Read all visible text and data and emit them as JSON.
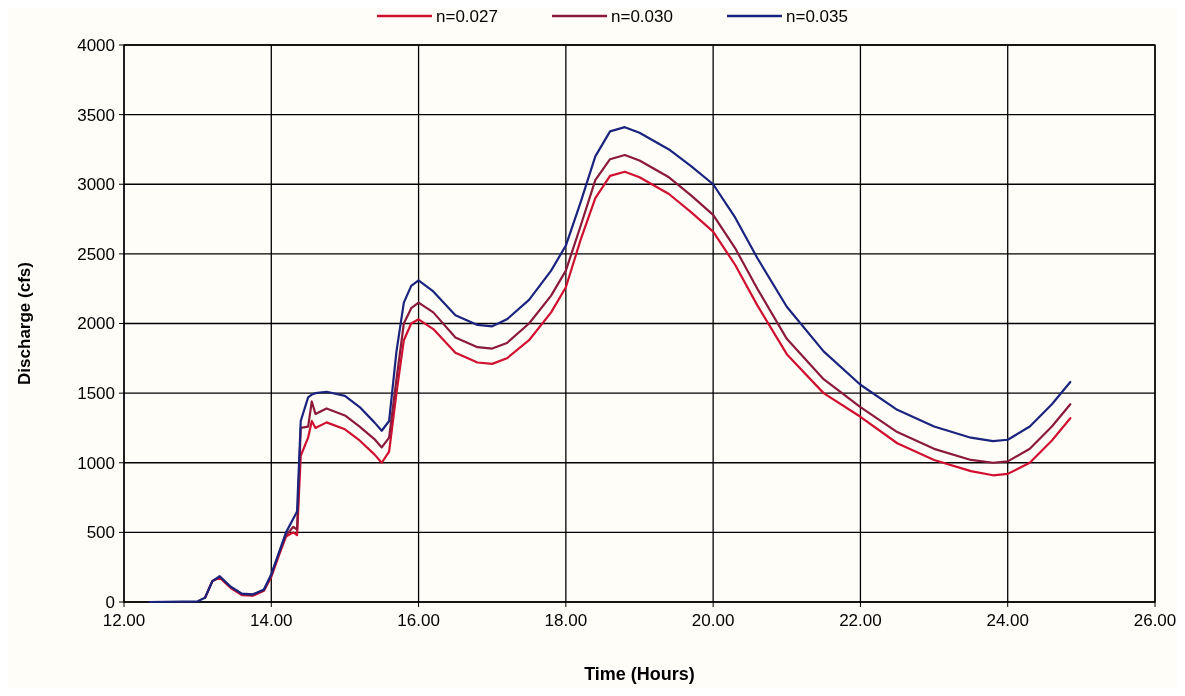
{
  "chart_data": {
    "type": "line",
    "xlabel": "Time (Hours)",
    "ylabel": "Discharge (cfs)",
    "x": [
      12.35,
      13.0,
      13.1,
      13.2,
      13.3,
      13.45,
      13.6,
      13.75,
      13.9,
      14.0,
      14.1,
      14.2,
      14.3,
      14.35,
      14.4,
      14.5,
      14.55,
      14.6,
      14.75,
      15.0,
      15.2,
      15.4,
      15.5,
      15.6,
      15.7,
      15.8,
      15.9,
      16.0,
      16.2,
      16.5,
      16.8,
      17.0,
      17.2,
      17.5,
      17.8,
      18.0,
      18.2,
      18.4,
      18.6,
      18.8,
      19.0,
      19.4,
      19.7,
      20.0,
      20.3,
      20.6,
      21.0,
      21.5,
      22.0,
      22.5,
      23.0,
      23.5,
      23.8,
      24.0,
      24.3,
      24.6,
      24.85
    ],
    "series": [
      {
        "name": "n=0.027",
        "color": "#d01030",
        "values": [
          null,
          null,
          30,
          150,
          175,
          100,
          50,
          45,
          80,
          180,
          330,
          470,
          500,
          480,
          1050,
          1180,
          1300,
          1250,
          1290,
          1240,
          1160,
          1060,
          1000,
          1080,
          1500,
          1880,
          2000,
          2030,
          1960,
          1790,
          1720,
          1710,
          1750,
          1880,
          2080,
          2260,
          2600,
          2900,
          3060,
          3090,
          3050,
          2930,
          2800,
          2660,
          2420,
          2130,
          1780,
          1500,
          1330,
          1140,
          1020,
          940,
          910,
          920,
          1000,
          1160,
          1320
        ]
      },
      {
        "name": "n=0.030",
        "color": "#8b1a3a",
        "values": [
          null,
          null,
          30,
          150,
          180,
          105,
          55,
          50,
          85,
          190,
          340,
          480,
          540,
          520,
          1250,
          1260,
          1440,
          1350,
          1390,
          1340,
          1260,
          1170,
          1110,
          1180,
          1600,
          2000,
          2110,
          2150,
          2080,
          1900,
          1830,
          1820,
          1860,
          2000,
          2200,
          2380,
          2700,
          3030,
          3180,
          3210,
          3170,
          3050,
          2920,
          2780,
          2540,
          2250,
          1890,
          1600,
          1400,
          1220,
          1100,
          1020,
          1000,
          1010,
          1100,
          1260,
          1420
        ]
      },
      {
        "name": "n=0.035",
        "color": "#1a237e",
        "values": [
          0,
          5,
          30,
          150,
          185,
          110,
          60,
          55,
          90,
          200,
          350,
          500,
          600,
          650,
          1300,
          1470,
          1490,
          1500,
          1510,
          1480,
          1400,
          1290,
          1230,
          1300,
          1800,
          2150,
          2270,
          2310,
          2230,
          2060,
          1990,
          1980,
          2030,
          2170,
          2380,
          2560,
          2870,
          3200,
          3380,
          3410,
          3370,
          3250,
          3130,
          3000,
          2760,
          2470,
          2120,
          1800,
          1560,
          1380,
          1260,
          1180,
          1155,
          1165,
          1260,
          1420,
          1580
        ]
      }
    ],
    "xlim": [
      12,
      26
    ],
    "xticks": [
      {
        "value": 12,
        "label": "12.00"
      },
      {
        "value": 14,
        "label": "14.00"
      },
      {
        "value": 16,
        "label": "16.00"
      },
      {
        "value": 18,
        "label": "18.00"
      },
      {
        "value": 20,
        "label": "20.00"
      },
      {
        "value": 22,
        "label": "22.00"
      },
      {
        "value": 24,
        "label": "24.00"
      },
      {
        "value": 26,
        "label": "26.00"
      }
    ],
    "ylim": [
      0,
      4000
    ],
    "yticks": [
      0,
      500,
      1000,
      1500,
      2000,
      2500,
      3000,
      3500,
      4000
    ],
    "grid": true,
    "legend": "top",
    "marker": "none",
    "line_style": "solid"
  }
}
